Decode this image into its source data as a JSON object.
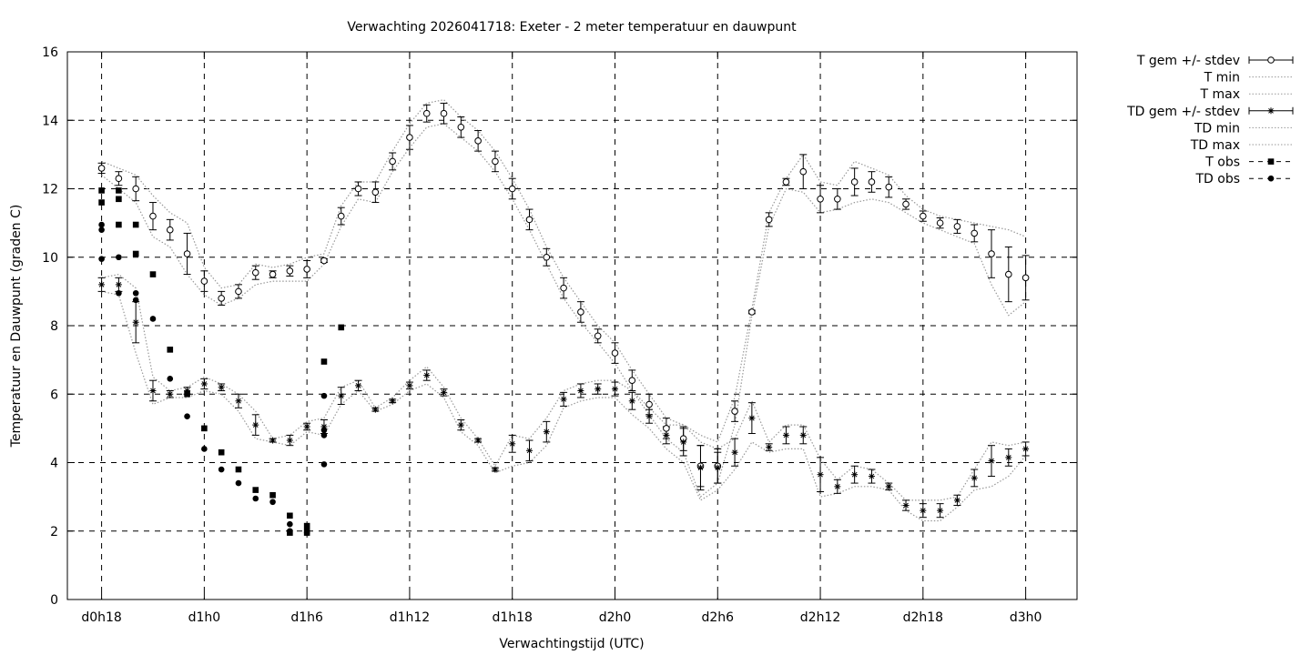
{
  "chart_data": {
    "type": "line",
    "title": "Verwachting 2026041718: Exeter - 2 meter temperatuur en dauwpunt",
    "xlabel": "Verwachtingstijd (UTC)",
    "ylabel": "Temperatuur en Dauwpunt (graden C)",
    "x_unit": "hours since d0h18",
    "xlim": [
      -2,
      57
    ],
    "ylim": [
      0,
      16
    ],
    "yticks": [
      0,
      2,
      4,
      6,
      8,
      10,
      12,
      14,
      16
    ],
    "xticks": [
      {
        "x": 0,
        "label": "d0h18"
      },
      {
        "x": 6,
        "label": "d1h0"
      },
      {
        "x": 12,
        "label": "d1h6"
      },
      {
        "x": 18,
        "label": "d1h12"
      },
      {
        "x": 24,
        "label": "d1h18"
      },
      {
        "x": 30,
        "label": "d2h0"
      },
      {
        "x": 36,
        "label": "d2h6"
      },
      {
        "x": 42,
        "label": "d2h12"
      },
      {
        "x": 48,
        "label": "d2h18"
      },
      {
        "x": 54,
        "label": "d3h0"
      }
    ],
    "grid": true,
    "legend_position": "right",
    "legend": [
      {
        "label": "T gem +/- stdev",
        "key": "t_mean"
      },
      {
        "label": "T min",
        "key": "t_min"
      },
      {
        "label": "T max",
        "key": "t_max"
      },
      {
        "label": "TD gem +/- stdev",
        "key": "td_mean"
      },
      {
        "label": "TD min",
        "key": "td_min"
      },
      {
        "label": "TD max",
        "key": "td_max"
      },
      {
        "label": "T obs",
        "key": "t_obs"
      },
      {
        "label": "TD obs",
        "key": "td_obs"
      }
    ],
    "series": {
      "t_mean": {
        "x": [
          0,
          1,
          2,
          3,
          4,
          5,
          6,
          7,
          8,
          9,
          10,
          11,
          12,
          13,
          14,
          15,
          16,
          17,
          18,
          19,
          20,
          21,
          22,
          23,
          24,
          25,
          26,
          27,
          28,
          29,
          30,
          31,
          32,
          33,
          34,
          35,
          36,
          37,
          38,
          39,
          40,
          41,
          42,
          43,
          44,
          45,
          46,
          47,
          48,
          49,
          50,
          51,
          52,
          53,
          54
        ],
        "y": [
          12.6,
          12.3,
          12.0,
          11.2,
          10.8,
          10.1,
          9.3,
          8.8,
          9.0,
          9.55,
          9.5,
          9.6,
          9.65,
          9.9,
          11.2,
          12.0,
          11.9,
          12.8,
          13.5,
          14.2,
          14.2,
          13.8,
          13.4,
          12.8,
          12.0,
          11.1,
          10.0,
          9.1,
          8.4,
          7.7,
          7.2,
          6.4,
          5.7,
          5.0,
          4.7,
          3.9,
          3.9,
          5.5,
          8.4,
          11.1,
          12.2,
          12.5,
          11.7,
          11.7,
          12.2,
          12.2,
          12.05,
          11.55,
          11.2,
          11.0,
          10.9,
          10.7,
          10.1,
          9.5,
          9.4
        ],
        "err": [
          0.15,
          0.2,
          0.35,
          0.4,
          0.3,
          0.6,
          0.3,
          0.2,
          0.2,
          0.2,
          0.1,
          0.15,
          0.25,
          0.05,
          0.25,
          0.2,
          0.3,
          0.25,
          0.35,
          0.25,
          0.3,
          0.3,
          0.3,
          0.3,
          0.3,
          0.3,
          0.25,
          0.3,
          0.3,
          0.2,
          0.3,
          0.3,
          0.3,
          0.3,
          0.35,
          0.6,
          0.5,
          0.3,
          0.05,
          0.2,
          0.1,
          0.5,
          0.4,
          0.3,
          0.4,
          0.3,
          0.3,
          0.15,
          0.15,
          0.15,
          0.2,
          0.25,
          0.7,
          0.8,
          0.65
        ]
      },
      "t_min": {
        "x": [
          0,
          1,
          2,
          3,
          4,
          5,
          6,
          7,
          8,
          9,
          10,
          11,
          12,
          13,
          14,
          15,
          16,
          17,
          18,
          19,
          20,
          21,
          22,
          23,
          24,
          25,
          26,
          27,
          28,
          29,
          30,
          31,
          32,
          33,
          34,
          35,
          36,
          37,
          38,
          39,
          40,
          41,
          42,
          43,
          44,
          45,
          46,
          47,
          48,
          49,
          50,
          51,
          52,
          53,
          54
        ],
        "y": [
          12.4,
          12.0,
          11.6,
          10.6,
          10.3,
          9.5,
          8.9,
          8.6,
          8.8,
          9.2,
          9.3,
          9.3,
          9.3,
          9.8,
          10.9,
          11.7,
          11.6,
          12.5,
          13.2,
          13.8,
          13.9,
          13.5,
          13.1,
          12.5,
          11.7,
          10.8,
          9.8,
          8.8,
          8.1,
          7.5,
          6.9,
          6.1,
          5.4,
          4.7,
          4.3,
          3.0,
          3.4,
          5.1,
          8.3,
          10.9,
          12.0,
          11.9,
          11.3,
          11.4,
          11.6,
          11.7,
          11.6,
          11.3,
          11.0,
          10.8,
          10.6,
          10.4,
          9.2,
          8.3,
          8.7
        ]
      },
      "t_max": {
        "x": [
          0,
          1,
          2,
          3,
          4,
          5,
          6,
          7,
          8,
          9,
          10,
          11,
          12,
          13,
          14,
          15,
          16,
          17,
          18,
          19,
          20,
          21,
          22,
          23,
          24,
          25,
          26,
          27,
          28,
          29,
          30,
          31,
          32,
          33,
          34,
          35,
          36,
          37,
          38,
          39,
          40,
          41,
          42,
          43,
          44,
          45,
          46,
          47,
          48,
          49,
          50,
          51,
          52,
          53,
          54
        ],
        "y": [
          12.8,
          12.6,
          12.4,
          11.8,
          11.3,
          11.0,
          9.7,
          9.1,
          9.2,
          9.8,
          9.7,
          9.8,
          10.0,
          10.1,
          11.5,
          12.2,
          12.2,
          13.1,
          13.9,
          14.5,
          14.6,
          14.1,
          13.7,
          13.1,
          12.3,
          11.4,
          10.3,
          9.4,
          8.7,
          8.0,
          7.5,
          6.7,
          6.0,
          5.3,
          5.1,
          4.8,
          4.6,
          5.9,
          8.5,
          11.3,
          12.3,
          13.0,
          12.2,
          12.1,
          12.8,
          12.6,
          12.4,
          11.8,
          11.4,
          11.2,
          11.1,
          11.0,
          10.9,
          10.8,
          10.6
        ]
      },
      "td_mean": {
        "x": [
          0,
          1,
          2,
          3,
          4,
          5,
          6,
          7,
          8,
          9,
          10,
          11,
          12,
          13,
          14,
          15,
          16,
          17,
          18,
          19,
          20,
          21,
          22,
          23,
          24,
          25,
          26,
          27,
          28,
          29,
          30,
          31,
          32,
          33,
          34,
          35,
          36,
          37,
          38,
          39,
          40,
          41,
          42,
          43,
          44,
          45,
          46,
          47,
          48,
          49,
          50,
          51,
          52,
          53,
          54
        ],
        "y": [
          9.2,
          9.2,
          8.1,
          6.1,
          6.0,
          6.1,
          6.3,
          6.2,
          5.8,
          5.1,
          4.65,
          4.65,
          5.05,
          5.05,
          5.95,
          6.25,
          5.55,
          5.8,
          6.25,
          6.55,
          6.05,
          5.1,
          4.65,
          3.8,
          4.55,
          4.35,
          4.9,
          5.85,
          6.1,
          6.15,
          6.15,
          5.8,
          5.35,
          4.8,
          4.6,
          3.85,
          3.85,
          4.3,
          5.3,
          4.45,
          4.8,
          4.8,
          3.65,
          3.3,
          3.65,
          3.6,
          3.3,
          2.75,
          2.6,
          2.6,
          2.9,
          3.55,
          4.05,
          4.15,
          4.4
        ],
        "err": [
          0.2,
          0.2,
          0.6,
          0.3,
          0.1,
          0.1,
          0.15,
          0.1,
          0.2,
          0.3,
          0.05,
          0.15,
          0.1,
          0.2,
          0.25,
          0.15,
          0.05,
          0.05,
          0.1,
          0.15,
          0.1,
          0.15,
          0.05,
          0.05,
          0.25,
          0.3,
          0.3,
          0.2,
          0.2,
          0.15,
          0.2,
          0.25,
          0.2,
          0.25,
          0.4,
          0.65,
          0.45,
          0.4,
          0.45,
          0.1,
          0.25,
          0.25,
          0.5,
          0.2,
          0.25,
          0.2,
          0.1,
          0.15,
          0.2,
          0.2,
          0.15,
          0.25,
          0.45,
          0.25,
          0.2
        ]
      },
      "td_min": {
        "x": [
          0,
          1,
          2,
          3,
          4,
          5,
          6,
          7,
          8,
          9,
          10,
          11,
          12,
          13,
          14,
          15,
          16,
          17,
          18,
          19,
          20,
          21,
          22,
          23,
          24,
          25,
          26,
          27,
          28,
          29,
          30,
          31,
          32,
          33,
          34,
          35,
          36,
          37,
          38,
          39,
          40,
          41,
          42,
          43,
          44,
          45,
          46,
          47,
          48,
          49,
          50,
          51,
          52,
          53,
          54
        ],
        "y": [
          9.0,
          8.9,
          7.2,
          5.7,
          5.9,
          5.9,
          6.1,
          6.0,
          5.5,
          4.7,
          4.6,
          4.5,
          4.9,
          4.8,
          5.7,
          6.1,
          5.5,
          5.7,
          6.1,
          6.3,
          5.9,
          4.9,
          4.5,
          3.7,
          3.9,
          4.0,
          4.5,
          5.6,
          5.8,
          5.9,
          5.9,
          5.4,
          5.0,
          4.4,
          4.0,
          2.9,
          3.2,
          3.8,
          4.6,
          4.3,
          4.4,
          4.4,
          3.0,
          3.1,
          3.3,
          3.3,
          3.2,
          2.6,
          2.3,
          2.3,
          2.7,
          3.2,
          3.3,
          3.6,
          4.2
        ]
      },
      "td_max": {
        "x": [
          0,
          1,
          2,
          3,
          4,
          5,
          6,
          7,
          8,
          9,
          10,
          11,
          12,
          13,
          14,
          15,
          16,
          17,
          18,
          19,
          20,
          21,
          22,
          23,
          24,
          25,
          26,
          27,
          28,
          29,
          30,
          31,
          32,
          33,
          34,
          35,
          36,
          37,
          38,
          39,
          40,
          41,
          42,
          43,
          44,
          45,
          46,
          47,
          48,
          49,
          50,
          51,
          52,
          53,
          54
        ],
        "y": [
          9.4,
          9.5,
          9.1,
          6.5,
          6.1,
          6.2,
          6.5,
          6.3,
          6.0,
          5.5,
          4.7,
          4.8,
          5.2,
          5.3,
          6.2,
          6.4,
          5.6,
          5.9,
          6.4,
          6.8,
          6.2,
          5.3,
          4.7,
          3.9,
          4.8,
          4.7,
          5.3,
          6.1,
          6.3,
          6.4,
          6.4,
          6.1,
          5.6,
          5.1,
          5.1,
          4.6,
          4.4,
          4.7,
          5.8,
          4.6,
          5.1,
          5.1,
          4.1,
          3.5,
          3.9,
          3.8,
          3.4,
          2.9,
          2.9,
          2.9,
          3.0,
          3.8,
          4.6,
          4.5,
          4.6
        ]
      },
      "t_obs": {
        "x": [
          0,
          0,
          1,
          1,
          1,
          2,
          2,
          3,
          4,
          5,
          6,
          7,
          8,
          9,
          10,
          11,
          11,
          12,
          12,
          13,
          14
        ],
        "y": [
          11.95,
          11.6,
          11.95,
          11.7,
          10.95,
          10.95,
          10.1,
          9.5,
          7.3,
          6.0,
          5.0,
          4.3,
          3.8,
          3.2,
          3.05,
          2.45,
          1.95,
          2.15,
          1.95,
          6.95,
          7.95
        ]
      },
      "td_obs": {
        "x": [
          0,
          0,
          0,
          1,
          1,
          2,
          2,
          3,
          4,
          5,
          6,
          7,
          8,
          9,
          10,
          11,
          11,
          12,
          12,
          13,
          13,
          13,
          13
        ],
        "y": [
          10.95,
          10.8,
          9.95,
          10.0,
          8.95,
          8.95,
          8.75,
          8.2,
          6.45,
          5.35,
          4.4,
          3.8,
          3.4,
          2.95,
          2.85,
          2.2,
          2.0,
          2.05,
          1.95,
          5.95,
          4.95,
          4.8,
          3.95
        ]
      }
    }
  }
}
